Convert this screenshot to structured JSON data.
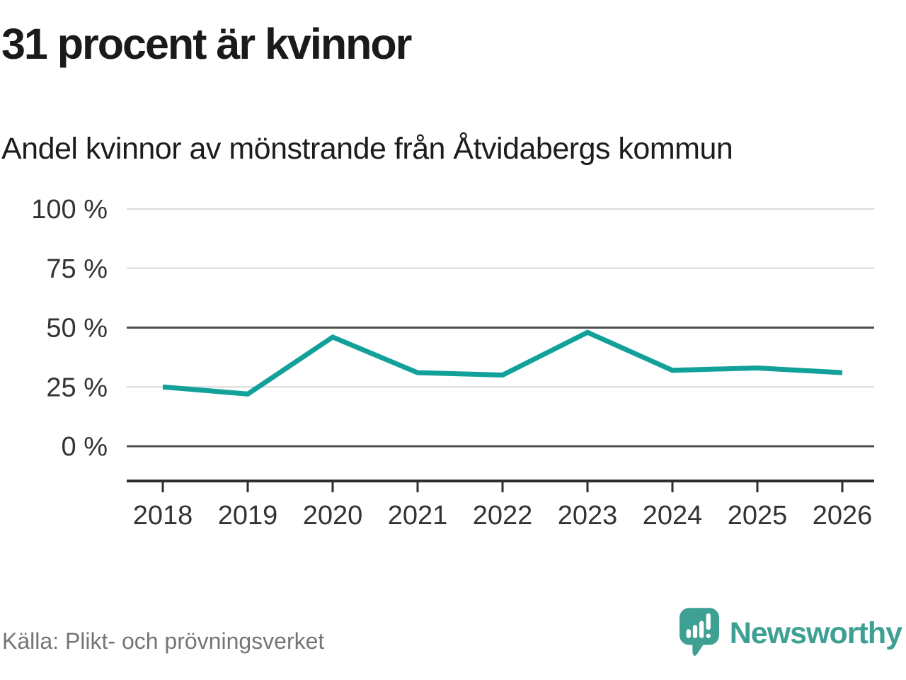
{
  "chart_data": {
    "type": "line",
    "title": "31 procent är kvinnor",
    "subtitle": "Andel kvinnor av mönstrande från Åtvidabergs kommun",
    "x": [
      "2018",
      "2019",
      "2020",
      "2021",
      "2022",
      "2023",
      "2024",
      "2025",
      "2026"
    ],
    "values": [
      25,
      22,
      46,
      31,
      30,
      48,
      32,
      33,
      31
    ],
    "unit": "%",
    "xlabel": "",
    "ylabel": "",
    "ylim": [
      0,
      100
    ],
    "yticks": [
      {
        "value": 100,
        "label": "100 %",
        "emphasized": false
      },
      {
        "value": 75,
        "label": "75 %",
        "emphasized": false
      },
      {
        "value": 50,
        "label": "50 %",
        "emphasized": true
      },
      {
        "value": 25,
        "label": "25 %",
        "emphasized": false
      },
      {
        "value": 0,
        "label": "0 %",
        "emphasized": true
      }
    ],
    "grid": true,
    "legend": "none"
  },
  "footer": {
    "source": "Källa: Plikt- och prövningsverket",
    "brand": "Newsworthy"
  },
  "colors": {
    "line": "#12a19a",
    "brand": "#3ea093",
    "grid_light": "#d9d9d9",
    "grid_dark": "#4f4f4f",
    "axis": "#2e2e2e",
    "title_text": "#1a1a1a",
    "muted_text": "#757575"
  }
}
